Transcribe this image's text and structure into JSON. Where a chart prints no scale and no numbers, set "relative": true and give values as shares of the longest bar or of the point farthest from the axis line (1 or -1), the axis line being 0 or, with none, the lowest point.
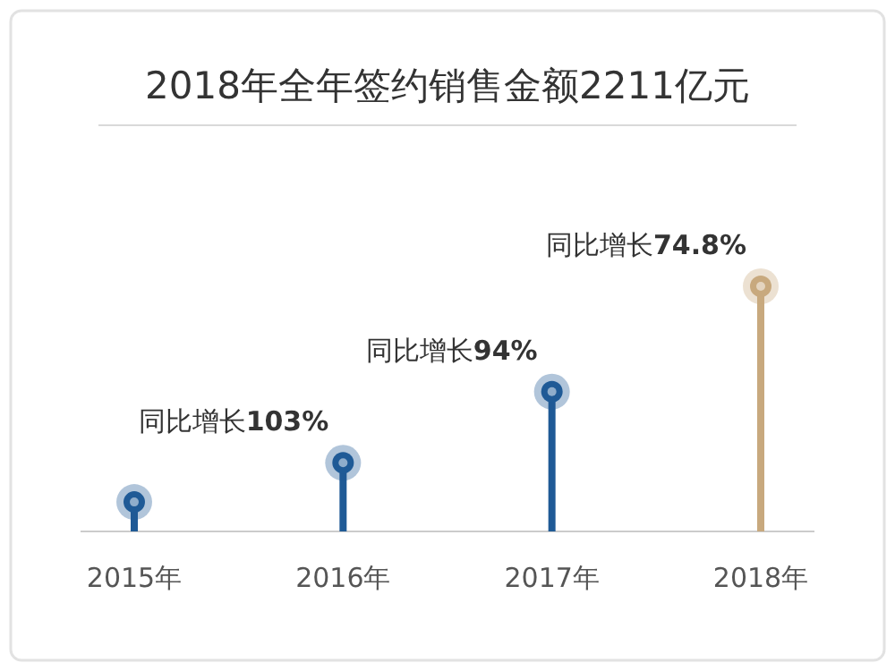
{
  "chart_data": {
    "type": "lollipop",
    "title": "2018年全年签约销售金额2211亿元",
    "relative": true,
    "categories": [
      "2015年",
      "2016年",
      "2017年",
      "2018年"
    ],
    "values": [
      0.12,
      0.28,
      0.57,
      1
    ],
    "colors": [
      "#1f5a96",
      "#1f5a96",
      "#1f5a96",
      "#c8a97e"
    ],
    "annotations": [
      {
        "text": "同比增长**103%**",
        "x": "2016年",
        "y": 0.28
      },
      {
        "text": "同比增长**94%**",
        "x": "2017年",
        "y": 0.57
      },
      {
        "text": "同比增长**74.8%**",
        "x": "2018年",
        "y": 1
      }
    ]
  }
}
